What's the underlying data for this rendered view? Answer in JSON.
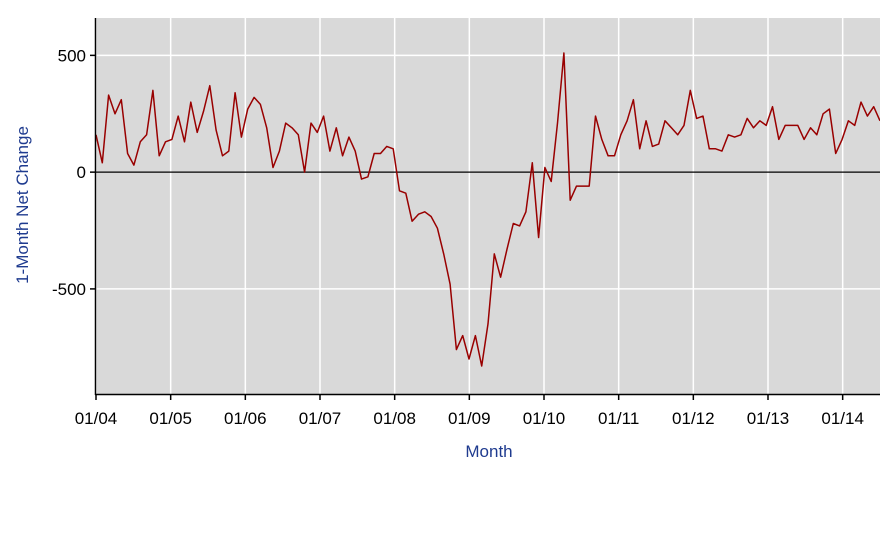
{
  "chart_data": {
    "type": "line",
    "xlabel": "Month",
    "ylabel": "1-Month Net Change",
    "ylim": [
      -950,
      660
    ],
    "yticks": [
      500,
      0,
      -500
    ],
    "ytick_labels": [
      "500",
      "0",
      "-500"
    ],
    "xrange": [
      2004.0,
      2014.5
    ],
    "xticks": [
      2004,
      2005,
      2006,
      2007,
      2008,
      2009,
      2010,
      2011,
      2012,
      2013,
      2014
    ],
    "xtick_labels": [
      "01/04",
      "01/05",
      "01/06",
      "01/07",
      "01/08",
      "01/09",
      "01/10",
      "01/11",
      "01/12",
      "01/13",
      "01/14"
    ],
    "grid": true,
    "zero_line": true,
    "colors": {
      "plot_bg": "#d9d9d9",
      "grid": "#ffffff",
      "line": "#990000",
      "zero_line": "#000000",
      "axis_title": "#1f3b8f"
    },
    "series": [
      {
        "values": [
          160,
          40,
          330,
          250,
          310,
          80,
          30,
          130,
          160,
          350,
          70,
          130,
          140,
          240,
          130,
          300,
          170,
          260,
          370,
          180,
          70,
          90,
          340,
          150,
          270,
          320,
          290,
          190,
          20,
          90,
          210,
          190,
          160,
          0,
          210,
          170,
          240,
          90,
          190,
          70,
          150,
          90,
          -30,
          -20,
          80,
          80,
          110,
          100,
          -80,
          -90,
          -210,
          -180,
          -170,
          -190,
          -240,
          -350,
          -480,
          -760,
          -700,
          -800,
          -700,
          -830,
          -650,
          -350,
          -450,
          -330,
          -220,
          -230,
          -170,
          40,
          -280,
          20,
          -40,
          210,
          510,
          -120,
          -60,
          -60,
          -60,
          240,
          140,
          70,
          70,
          160,
          220,
          310,
          100,
          220,
          110,
          120,
          220,
          190,
          160,
          200,
          350,
          230,
          240,
          100,
          100,
          90,
          160,
          150,
          160,
          230,
          190,
          220,
          200,
          280,
          140,
          200,
          200,
          200,
          140,
          190,
          160,
          250,
          270,
          80,
          140,
          220,
          200,
          300,
          240,
          280,
          220
        ]
      }
    ]
  }
}
